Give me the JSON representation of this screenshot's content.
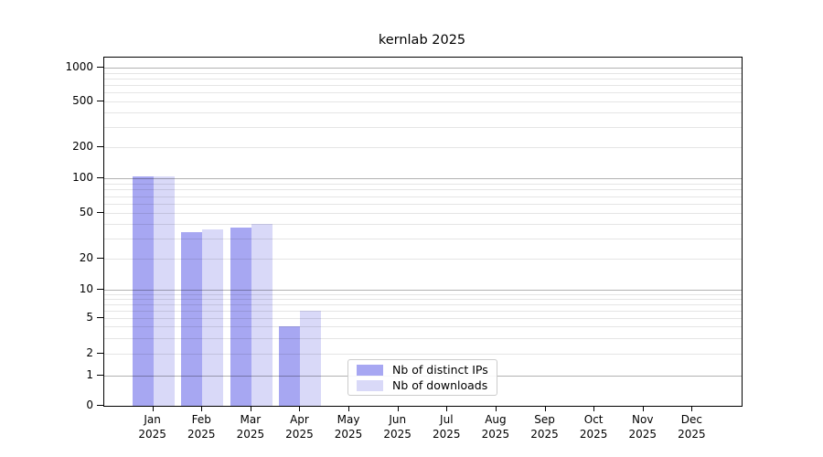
{
  "chart_data": {
    "type": "bar",
    "title": "kernlab 2025",
    "categories": [
      "Jan",
      "Feb",
      "Mar",
      "Apr",
      "May",
      "Jun",
      "Jul",
      "Aug",
      "Sep",
      "Oct",
      "Nov",
      "Dec"
    ],
    "year": "2025",
    "series": [
      {
        "name": "Nb of distinct IPs",
        "color": "#a7a7f2",
        "values": [
          104,
          34,
          37,
          4,
          0,
          0,
          0,
          0,
          0,
          0,
          0,
          0
        ]
      },
      {
        "name": "Nb of downloads",
        "color": "#d9d9f8",
        "values": [
          104,
          36,
          40,
          6,
          0,
          0,
          0,
          0,
          0,
          0,
          0,
          0
        ]
      }
    ],
    "y_ticks": [
      0,
      1,
      2,
      5,
      10,
      20,
      50,
      100,
      200,
      500,
      1000
    ],
    "ylim": [
      0,
      1200
    ],
    "scale": "log-like with linear 0-1 segment",
    "grid": "horizontal, major at powers of 10, faint minors",
    "legend_position": "lower center (inside plot)",
    "xlabel": "",
    "ylabel": ""
  }
}
